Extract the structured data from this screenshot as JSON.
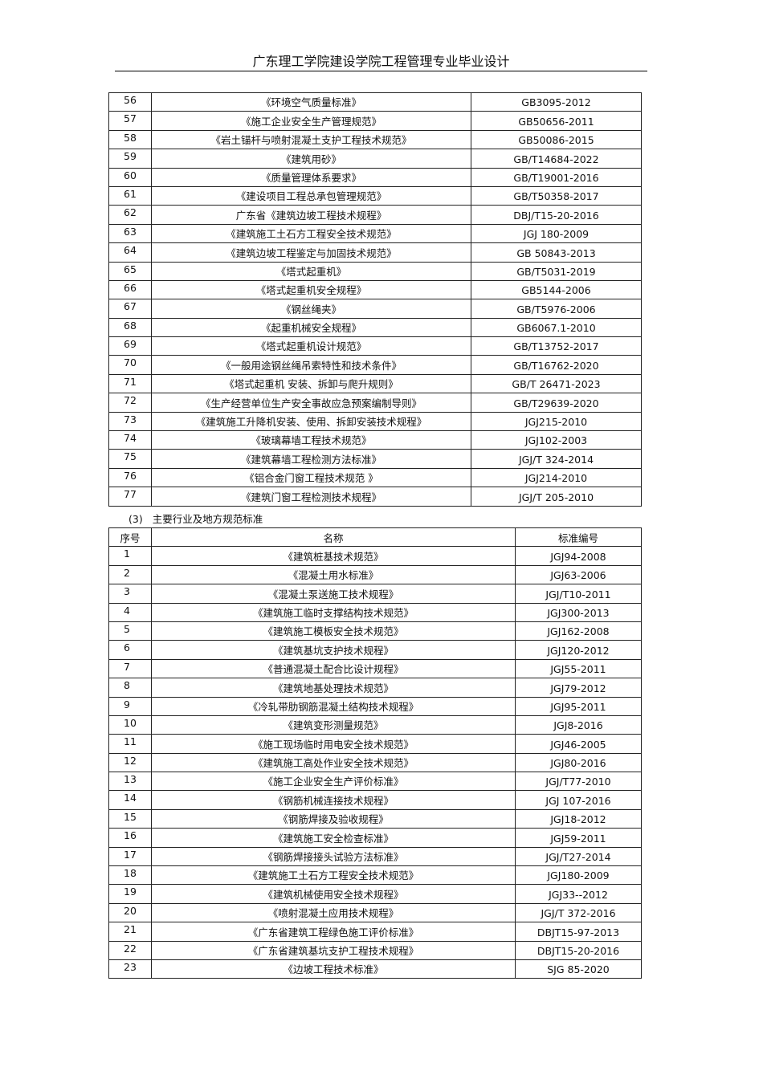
{
  "header": {
    "title": "广东理工学院建设学院工程管理专业毕业设计"
  },
  "table1": {
    "rows": [
      [
        "56",
        "《环境空气质量标准》",
        "GB3095-2012"
      ],
      [
        "57",
        "《施工企业安全生产管理规范》",
        "GB50656-2011"
      ],
      [
        "58",
        "《岩土锚杆与喷射混凝土支护工程技术规范》",
        "GB50086-2015"
      ],
      [
        "59",
        "《建筑用砂》",
        "GB/T14684-2022"
      ],
      [
        "60",
        "《质量管理体系要求》",
        "GB/T19001-2016"
      ],
      [
        "61",
        "《建设项目工程总承包管理规范》",
        "GB/T50358-2017"
      ],
      [
        "62",
        "广东省《建筑边坡工程技术规程》",
        "DBJ/T15-20-2016"
      ],
      [
        "63",
        "《建筑施工土石方工程安全技术规范》",
        "JGJ 180-2009"
      ],
      [
        "64",
        "《建筑边坡工程鉴定与加固技术规范》",
        "GB 50843-2013"
      ],
      [
        "65",
        "《塔式起重机》",
        "GB/T5031-2019"
      ],
      [
        "66",
        "《塔式起重机安全规程》",
        "GB5144-2006"
      ],
      [
        "67",
        "《钢丝绳夹》",
        "GB/T5976-2006"
      ],
      [
        "68",
        "《起重机械安全规程》",
        "GB6067.1-2010"
      ],
      [
        "69",
        "《塔式起重机设计规范》",
        "GB/T13752-2017"
      ],
      [
        "70",
        "《一般用途钢丝绳吊索特性和技术条件》",
        "GB/T16762-2020"
      ],
      [
        "71",
        "《塔式起重机 安装、拆卸与爬升规则》",
        "GB/T 26471-2023"
      ],
      [
        "72",
        "《生产经营单位生产安全事故应急预案编制导则》",
        "GB/T29639-2020"
      ],
      [
        "73",
        "《建筑施工升降机安装、使用、拆卸安装技术规程》",
        "JGJ215-2010"
      ],
      [
        "74",
        "《玻璃幕墙工程技术规范》",
        "JGJ102-2003"
      ],
      [
        "75",
        "《建筑幕墙工程检测方法标准》",
        "JGJ/T 324-2014"
      ],
      [
        "76",
        "《铝合金门窗工程技术规范 》",
        "JGJ214-2010"
      ],
      [
        "77",
        "《建筑门窗工程检测技术规程》",
        "JGJ/T 205-2010"
      ]
    ]
  },
  "section3": {
    "number": "(3)",
    "title": "主要行业及地方规范标准"
  },
  "table2": {
    "headers": [
      "序号",
      "名称",
      "标准编号"
    ],
    "rows": [
      [
        "1",
        "《建筑桩基技术规范》",
        "JGJ94-2008"
      ],
      [
        "2",
        "《混凝土用水标准》",
        "JGJ63-2006"
      ],
      [
        "3",
        "《混凝土泵送施工技术规程》",
        "JGJ/T10-2011"
      ],
      [
        "4",
        "《建筑施工临时支撑结构技术规范》",
        "JGJ300-2013"
      ],
      [
        "5",
        "《建筑施工模板安全技术规范》",
        "JGJ162-2008"
      ],
      [
        "6",
        "《建筑基坑支护技术规程》",
        "JGJ120-2012"
      ],
      [
        "7",
        "《普通混凝土配合比设计规程》",
        "JGJ55-2011"
      ],
      [
        "8",
        "《建筑地基处理技术规范》",
        "JGJ79-2012"
      ],
      [
        "9",
        "《冷轧带肋钢筋混凝土结构技术规程》",
        "JGJ95-2011"
      ],
      [
        "10",
        "《建筑变形测量规范》",
        "JGJ8-2016"
      ],
      [
        "11",
        "《施工现场临时用电安全技术规范》",
        "JGJ46-2005"
      ],
      [
        "12",
        "《建筑施工高处作业安全技术规范》",
        "JGJ80-2016"
      ],
      [
        "13",
        "《施工企业安全生产评价标准》",
        "JGJ/T77-2010"
      ],
      [
        "14",
        "《钢筋机械连接技术规程》",
        "JGJ 107-2016"
      ],
      [
        "15",
        "《钢筋焊接及验收规程》",
        "JGJ18-2012"
      ],
      [
        "16",
        "《建筑施工安全检查标准》",
        "JGJ59-2011"
      ],
      [
        "17",
        "《钢筋焊接接头试验方法标准》",
        "JGJ/T27-2014"
      ],
      [
        "18",
        "《建筑施工土石方工程安全技术规范》",
        "JGJ180-2009"
      ],
      [
        "19",
        "《建筑机械使用安全技术规程》",
        "JGJ33--2012"
      ],
      [
        "20",
        "《喷射混凝土应用技术规程》",
        "JGJ/T 372-2016"
      ],
      [
        "21",
        "《广东省建筑工程绿色施工评价标准》",
        "DBJT15-97-2013"
      ],
      [
        "22",
        "《广东省建筑基坑支护工程技术规程》",
        "DBJT15-20-2016"
      ],
      [
        "23",
        "《边坡工程技术标准》",
        "SJG 85-2020"
      ]
    ]
  }
}
